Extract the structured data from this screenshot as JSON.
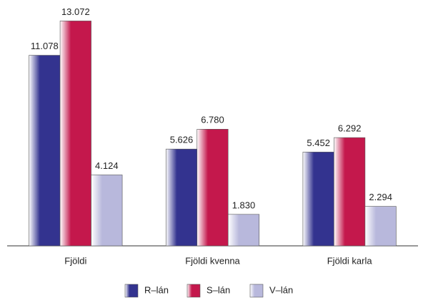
{
  "chart_data": {
    "type": "bar",
    "categories": [
      "Fjöldi",
      "Fjöldi kvenna",
      "Fjöldi karla"
    ],
    "series": [
      {
        "name": "R–lán",
        "color": "#33338f",
        "values": [
          11078,
          5626,
          5452
        ],
        "value_labels": [
          "11.078",
          "5.626",
          "5.452"
        ]
      },
      {
        "name": "S–lán",
        "color": "#c4184c",
        "values": [
          13072,
          6780,
          6292
        ],
        "value_labels": [
          "13.072",
          "6.780",
          "6.292"
        ]
      },
      {
        "name": "V–lán",
        "color": "#b8b8dc",
        "values": [
          4124,
          1830,
          2294
        ],
        "value_labels": [
          "4.124",
          "1.830",
          "2.294"
        ]
      }
    ],
    "ylim": [
      0,
      14000
    ],
    "legend": "bottom"
  }
}
